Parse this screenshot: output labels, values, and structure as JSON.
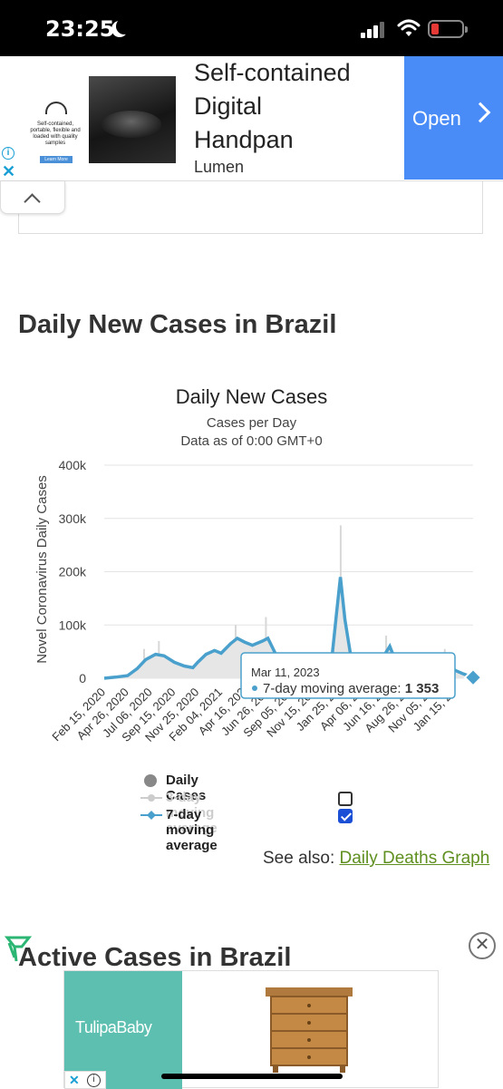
{
  "status_bar": {
    "time": "23:25"
  },
  "ad_top": {
    "thumb_text": "Self-contained, portable, flexible and loaded with quality samples",
    "thumb_button": "Learn More",
    "title_line1": "Self-contained",
    "title_line2": "Digital",
    "title_line3": "Handpan",
    "brand": "Lumen",
    "cta": "Open",
    "info_icon": "info-icon",
    "close_icon": "close-icon"
  },
  "section": {
    "heading": "Daily New Cases in Brazil"
  },
  "chart_data": {
    "type": "area",
    "title": "Daily New Cases",
    "subtitle_line1": "Cases per Day",
    "subtitle_line2": "Data as of 0:00 GMT+0",
    "ylabel": "Novel Coronavirus Daily Cases",
    "ylim": [
      0,
      400000
    ],
    "y_ticks": [
      "0",
      "100k",
      "200k",
      "300k",
      "400k"
    ],
    "x_tick_labels": [
      "Feb 15, 2020",
      "Apr 26, 2020",
      "Jul 06, 2020",
      "Sep 15, 2020",
      "Nov 25, 2020",
      "Feb 04, 2021",
      "Apr 16, 2021",
      "Jun 26, 2021",
      "Sep 05, 2021",
      "Nov 15, 2021",
      "Jan 25, 2022",
      "Apr 06, 2022",
      "Jun 16, 2022",
      "Aug 26, 2022",
      "Nov 05, 2022",
      "Jan 15, 2023"
    ],
    "x_tick_labels_visible": [
      "Feb 15, 2020",
      "Apr 26, 2020",
      "Jul 06, 2020",
      "Sep 15, 2020",
      "Nov 25, 2020",
      "Feb 04, 2021",
      "Apr 16, 202",
      "Jun 26, 202",
      "Sep 05, 202",
      "Nov 15, 202",
      "Jan 25, 20",
      "Apr 06, 20",
      "Jun 16, 20",
      "Aug 26, 20",
      "Nov 05, 20",
      "Jan 15, 20"
    ],
    "grid": true,
    "series": [
      {
        "name": "7-day moving average",
        "color": "#4aa0cc",
        "points": [
          [
            "2020-02-15",
            0
          ],
          [
            "2020-03-20",
            2000
          ],
          [
            "2020-04-26",
            5000
          ],
          [
            "2020-05-25",
            18000
          ],
          [
            "2020-06-20",
            35000
          ],
          [
            "2020-07-20",
            45000
          ],
          [
            "2020-08-15",
            42000
          ],
          [
            "2020-09-15",
            30000
          ],
          [
            "2020-10-15",
            23000
          ],
          [
            "2020-11-10",
            20000
          ],
          [
            "2020-11-25",
            30000
          ],
          [
            "2020-12-20",
            45000
          ],
          [
            "2021-01-15",
            52000
          ],
          [
            "2021-02-04",
            47000
          ],
          [
            "2021-03-05",
            65000
          ],
          [
            "2021-03-25",
            75000
          ],
          [
            "2021-04-16",
            68000
          ],
          [
            "2021-05-10",
            62000
          ],
          [
            "2021-06-10",
            70000
          ],
          [
            "2021-06-26",
            75000
          ],
          [
            "2021-07-20",
            45000
          ],
          [
            "2021-08-15",
            32000
          ],
          [
            "2021-09-05",
            18000
          ],
          [
            "2021-10-10",
            12000
          ],
          [
            "2021-11-15",
            10000
          ],
          [
            "2021-12-20",
            5000
          ],
          [
            "2022-01-05",
            30000
          ],
          [
            "2022-01-20",
            120000
          ],
          [
            "2022-02-01",
            190000
          ],
          [
            "2022-02-15",
            110000
          ],
          [
            "2022-03-05",
            40000
          ],
          [
            "2022-04-06",
            15000
          ],
          [
            "2022-05-10",
            20000
          ],
          [
            "2022-06-16",
            45000
          ],
          [
            "2022-07-01",
            60000
          ],
          [
            "2022-07-20",
            30000
          ],
          [
            "2022-08-26",
            10000
          ],
          [
            "2022-10-05",
            5000
          ],
          [
            "2022-11-05",
            6000
          ],
          [
            "2022-12-01",
            25000
          ],
          [
            "2022-12-20",
            35000
          ],
          [
            "2023-01-15",
            15000
          ],
          [
            "2023-02-10",
            8000
          ],
          [
            "2023-03-11",
            1353
          ]
        ]
      }
    ],
    "spikes": [
      [
        "2020-06-15",
        55000
      ],
      [
        "2020-07-30",
        70000
      ],
      [
        "2021-03-20",
        100000
      ],
      [
        "2021-06-20",
        115000
      ],
      [
        "2022-02-02",
        287000
      ],
      [
        "2022-06-20",
        80000
      ],
      [
        "2022-12-15",
        55000
      ]
    ],
    "tooltip": {
      "date": "Mar 11, 2023",
      "label": "7-day moving average: ",
      "value": "1 353"
    },
    "legend": {
      "daily": "Daily Cases",
      "avg3": "3-day moving average",
      "avg7": "7-day moving average",
      "avg3_checked": false,
      "avg7_checked": true
    }
  },
  "see_also": {
    "prefix": "See also: ",
    "link": "Daily Deaths Graph"
  },
  "bottom": {
    "heading": "Active Cases in Brazil",
    "ad_brand": "TulipaBaby",
    "ad_close": "close-icon"
  }
}
